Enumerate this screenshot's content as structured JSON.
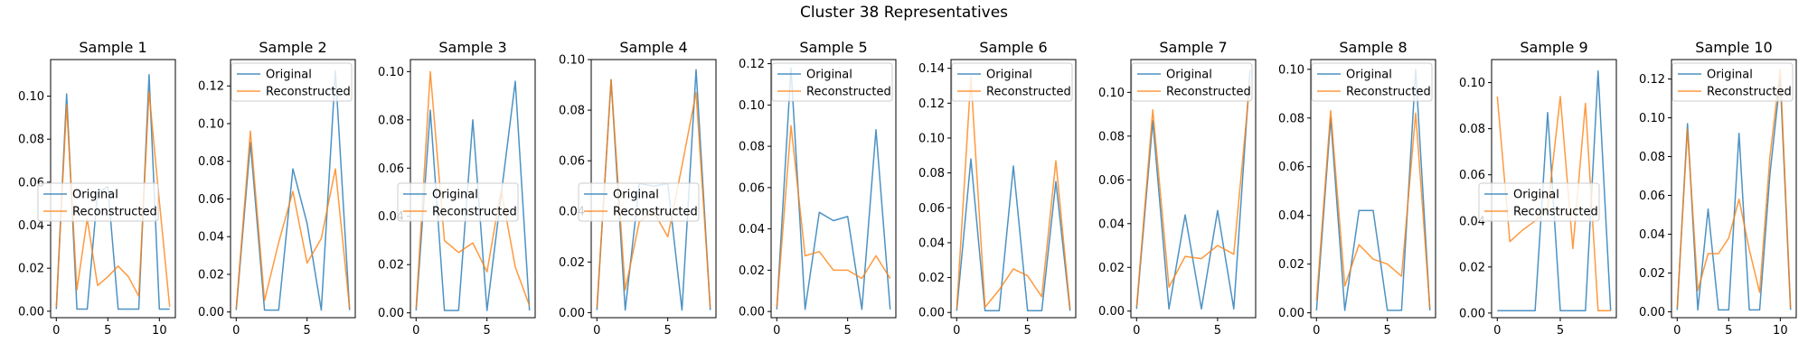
{
  "figure": {
    "title": "Cluster 38 Representatives"
  },
  "colors": {
    "original": "#1f77b4",
    "reconstructed": "#ff7f0e"
  },
  "chart_data": [
    {
      "type": "line",
      "title": "Sample 1",
      "ylim": [
        -0.003,
        0.117
      ],
      "yticks": [
        0,
        0.02,
        0.04,
        0.06,
        0.08,
        0.1
      ],
      "yticklabels": [
        "0.00",
        "0.02",
        "0.04",
        "0.06",
        "0.08",
        "0.10"
      ],
      "xlim": [
        -0.55,
        11.55
      ],
      "xticks": [
        0,
        5,
        10
      ],
      "legend": "center-left",
      "grid": false,
      "x": [
        0,
        1,
        2,
        3,
        4,
        5,
        6,
        7,
        8,
        9,
        10,
        11
      ],
      "series": [
        {
          "name": "Original",
          "values": [
            0.001,
            0.101,
            0.001,
            0.001,
            0.055,
            0.058,
            0.001,
            0.001,
            0.001,
            0.11,
            0.001,
            0.001
          ]
        },
        {
          "name": "Reconstructed",
          "values": [
            0.002,
            0.096,
            0.01,
            0.043,
            0.012,
            0.016,
            0.021,
            0.016,
            0.007,
            0.102,
            0.051,
            0.002
          ]
        }
      ]
    },
    {
      "type": "line",
      "title": "Sample 2",
      "ylim": [
        -0.003,
        0.134
      ],
      "yticks": [
        0,
        0.02,
        0.04,
        0.06,
        0.08,
        0.1,
        0.12
      ],
      "yticklabels": [
        "0.00",
        "0.02",
        "0.04",
        "0.06",
        "0.08",
        "0.10",
        "0.12"
      ],
      "xlim": [
        -0.4,
        8.4
      ],
      "xticks": [
        0,
        5
      ],
      "legend": "upper-right",
      "grid": false,
      "x": [
        0,
        1,
        2,
        3,
        4,
        5,
        6,
        7,
        8
      ],
      "series": [
        {
          "name": "Original",
          "values": [
            0.001,
            0.09,
            0.001,
            0.001,
            0.076,
            0.047,
            0.001,
            0.128,
            0.001
          ]
        },
        {
          "name": "Reconstructed",
          "values": [
            0.002,
            0.096,
            0.006,
            0.037,
            0.064,
            0.026,
            0.039,
            0.076,
            0.002
          ]
        }
      ]
    },
    {
      "type": "line",
      "title": "Sample 3",
      "ylim": [
        -0.002,
        0.105
      ],
      "yticks": [
        0,
        0.02,
        0.04,
        0.06,
        0.08,
        0.1
      ],
      "yticklabels": [
        "0.00",
        "0.02",
        "0.04",
        "0.06",
        "0.08",
        "0.10"
      ],
      "xlim": [
        -0.4,
        8.4
      ],
      "xticks": [
        0,
        5
      ],
      "legend": "center-left",
      "grid": false,
      "x": [
        0,
        1,
        2,
        3,
        4,
        5,
        6,
        7,
        8
      ],
      "series": [
        {
          "name": "Original",
          "values": [
            0.001,
            0.084,
            0.001,
            0.001,
            0.08,
            0.001,
            0.049,
            0.096,
            0.001
          ]
        },
        {
          "name": "Reconstructed",
          "values": [
            0.002,
            0.1,
            0.03,
            0.025,
            0.029,
            0.017,
            0.051,
            0.019,
            0.003
          ]
        }
      ]
    },
    {
      "type": "line",
      "title": "Sample 4",
      "ylim": [
        -0.002,
        0.1
      ],
      "yticks": [
        0,
        0.02,
        0.04,
        0.06,
        0.08,
        0.1
      ],
      "yticklabels": [
        "0.00",
        "0.02",
        "0.04",
        "0.06",
        "0.08",
        "0.10"
      ],
      "xlim": [
        -0.4,
        8.4
      ],
      "xticks": [
        0,
        5
      ],
      "legend": "center-left",
      "grid": false,
      "x": [
        0,
        1,
        2,
        3,
        4,
        5,
        6,
        7,
        8
      ],
      "series": [
        {
          "name": "Original",
          "values": [
            0.001,
            0.092,
            0.001,
            0.051,
            0.05,
            0.051,
            0.001,
            0.096,
            0.001
          ]
        },
        {
          "name": "Reconstructed",
          "values": [
            0.002,
            0.092,
            0.009,
            0.036,
            0.04,
            0.03,
            0.058,
            0.087,
            0.002
          ]
        }
      ]
    },
    {
      "type": "line",
      "title": "Sample 5",
      "ylim": [
        -0.003,
        0.122
      ],
      "yticks": [
        0,
        0.02,
        0.04,
        0.06,
        0.08,
        0.1,
        0.12
      ],
      "yticklabels": [
        "0.00",
        "0.02",
        "0.04",
        "0.06",
        "0.08",
        "0.10",
        "0.12"
      ],
      "xlim": [
        -0.4,
        8.4
      ],
      "xticks": [
        0,
        5
      ],
      "legend": "upper-right",
      "grid": false,
      "x": [
        0,
        1,
        2,
        3,
        4,
        5,
        6,
        7,
        8
      ],
      "series": [
        {
          "name": "Original",
          "values": [
            0.001,
            0.118,
            0.001,
            0.048,
            0.044,
            0.046,
            0.001,
            0.088,
            0.001
          ]
        },
        {
          "name": "Reconstructed",
          "values": [
            0.002,
            0.09,
            0.027,
            0.029,
            0.02,
            0.02,
            0.016,
            0.027,
            0.016
          ]
        }
      ]
    },
    {
      "type": "line",
      "title": "Sample 6",
      "ylim": [
        -0.003,
        0.145
      ],
      "yticks": [
        0,
        0.02,
        0.04,
        0.06,
        0.08,
        0.1,
        0.12,
        0.14
      ],
      "yticklabels": [
        "0.00",
        "0.02",
        "0.04",
        "0.06",
        "0.08",
        "0.10",
        "0.12",
        "0.14"
      ],
      "xlim": [
        -0.4,
        8.4
      ],
      "xticks": [
        0,
        5
      ],
      "legend": "upper-right",
      "grid": false,
      "x": [
        0,
        1,
        2,
        3,
        4,
        5,
        6,
        7,
        8
      ],
      "series": [
        {
          "name": "Original",
          "values": [
            0.001,
            0.088,
            0.001,
            0.001,
            0.084,
            0.001,
            0.001,
            0.075,
            0.001
          ]
        },
        {
          "name": "Reconstructed",
          "values": [
            0.002,
            0.135,
            0.003,
            0.013,
            0.025,
            0.021,
            0.009,
            0.087,
            0.002
          ]
        }
      ]
    },
    {
      "type": "line",
      "title": "Sample 7",
      "ylim": [
        -0.003,
        0.115
      ],
      "yticks": [
        0,
        0.02,
        0.04,
        0.06,
        0.08,
        0.1
      ],
      "yticklabels": [
        "0.00",
        "0.02",
        "0.04",
        "0.06",
        "0.08",
        "0.10"
      ],
      "xlim": [
        -0.35,
        7.35
      ],
      "xticks": [
        0,
        5
      ],
      "legend": "upper-right",
      "grid": false,
      "x": [
        0,
        1,
        2,
        3,
        4,
        5,
        6,
        7
      ],
      "series": [
        {
          "name": "Original",
          "values": [
            0.001,
            0.087,
            0.001,
            0.044,
            0.001,
            0.046,
            0.001,
            0.11
          ]
        },
        {
          "name": "Reconstructed",
          "values": [
            0.002,
            0.092,
            0.011,
            0.025,
            0.024,
            0.03,
            0.026,
            0.105
          ]
        }
      ]
    },
    {
      "type": "line",
      "title": "Sample 8",
      "ylim": [
        -0.002,
        0.104
      ],
      "yticks": [
        0,
        0.02,
        0.04,
        0.06,
        0.08,
        0.1
      ],
      "yticklabels": [
        "0.00",
        "0.02",
        "0.04",
        "0.06",
        "0.08",
        "0.10"
      ],
      "xlim": [
        -0.4,
        8.4
      ],
      "xticks": [
        0,
        5
      ],
      "legend": "upper-right",
      "grid": false,
      "x": [
        0,
        1,
        2,
        3,
        4,
        5,
        6,
        7,
        8
      ],
      "series": [
        {
          "name": "Original",
          "values": [
            0.001,
            0.08,
            0.001,
            0.042,
            0.042,
            0.001,
            0.001,
            0.1,
            0.001
          ]
        },
        {
          "name": "Reconstructed",
          "values": [
            0.005,
            0.083,
            0.011,
            0.028,
            0.022,
            0.02,
            0.015,
            0.082,
            0.002
          ]
        }
      ]
    },
    {
      "type": "line",
      "title": "Sample 9",
      "ylim": [
        -0.002,
        0.11
      ],
      "yticks": [
        0,
        0.02,
        0.04,
        0.06,
        0.08,
        0.1
      ],
      "yticklabels": [
        "0.00",
        "0.02",
        "0.04",
        "0.06",
        "0.08",
        "0.10"
      ],
      "xlim": [
        -0.45,
        9.45
      ],
      "xticks": [
        0,
        5
      ],
      "legend": "center-left",
      "grid": false,
      "x": [
        0,
        1,
        2,
        3,
        4,
        5,
        6,
        7,
        8,
        9
      ],
      "series": [
        {
          "name": "Original",
          "values": [
            0.001,
            0.001,
            0.001,
            0.001,
            0.087,
            0.001,
            0.001,
            0.001,
            0.105,
            0.001
          ]
        },
        {
          "name": "Reconstructed",
          "values": [
            0.094,
            0.031,
            0.036,
            0.04,
            0.045,
            0.094,
            0.028,
            0.091,
            0.001,
            0.001
          ]
        }
      ]
    },
    {
      "type": "line",
      "title": "Sample 10",
      "ylim": [
        -0.003,
        0.13
      ],
      "yticks": [
        0,
        0.02,
        0.04,
        0.06,
        0.08,
        0.1,
        0.12
      ],
      "yticklabels": [
        "0.00",
        "0.02",
        "0.04",
        "0.06",
        "0.08",
        "0.10",
        "0.12"
      ],
      "xlim": [
        -0.55,
        11.55
      ],
      "xticks": [
        0,
        5,
        10
      ],
      "legend": "upper-right",
      "grid": false,
      "x": [
        0,
        1,
        2,
        3,
        4,
        5,
        6,
        7,
        8,
        9,
        10,
        11
      ],
      "series": [
        {
          "name": "Original",
          "values": [
            0.001,
            0.097,
            0.001,
            0.053,
            0.001,
            0.001,
            0.092,
            0.001,
            0.001,
            0.071,
            0.12,
            0.001
          ]
        },
        {
          "name": "Reconstructed",
          "values": [
            0.002,
            0.094,
            0.011,
            0.03,
            0.03,
            0.038,
            0.058,
            0.032,
            0.01,
            0.08,
            0.125,
            0.002
          ]
        }
      ]
    }
  ]
}
